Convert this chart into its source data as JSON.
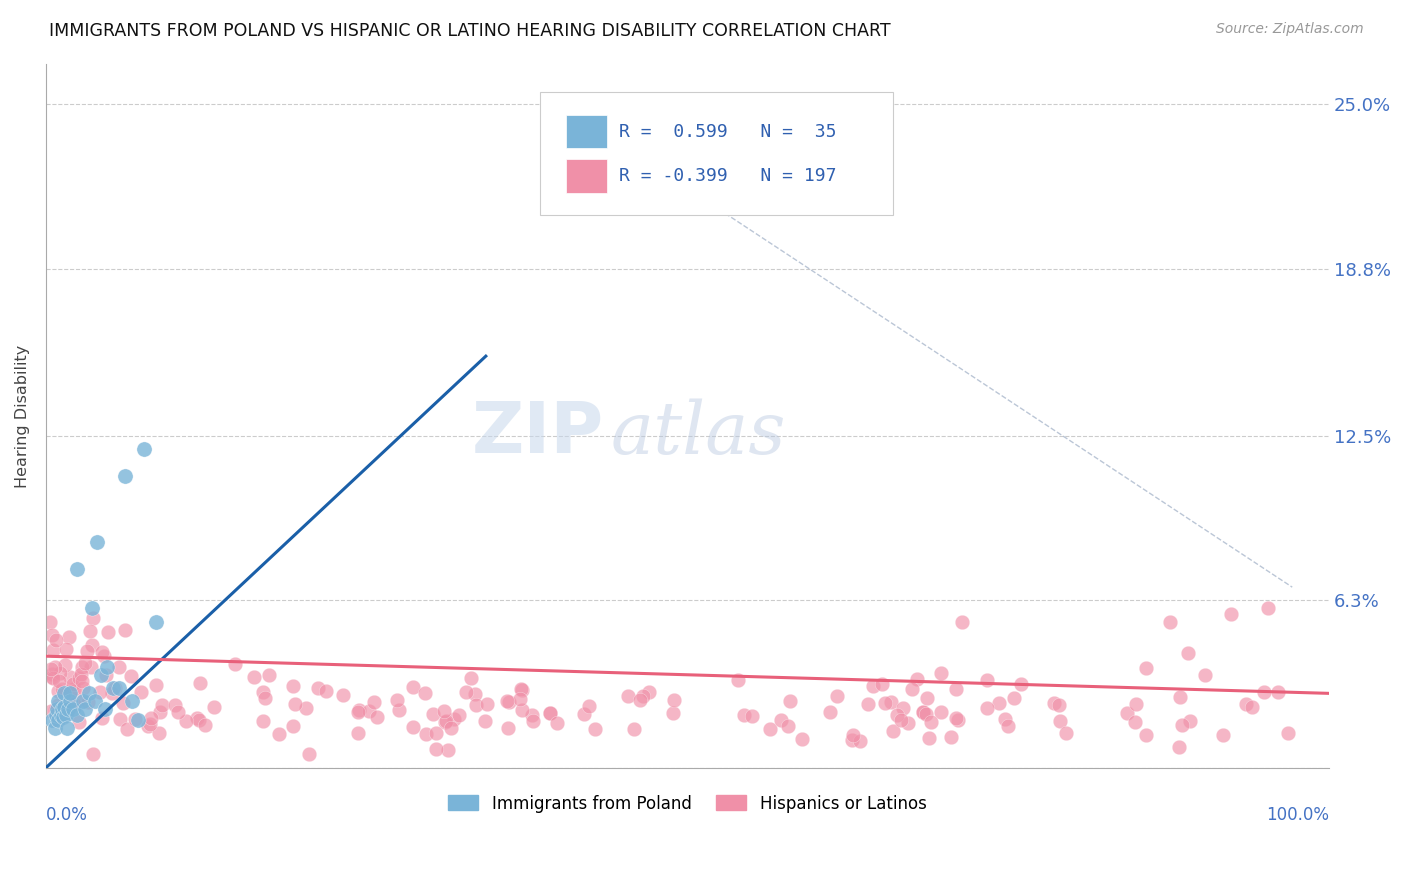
{
  "title": "IMMIGRANTS FROM POLAND VS HISPANIC OR LATINO HEARING DISABILITY CORRELATION CHART",
  "source": "Source: ZipAtlas.com",
  "ylabel": "Hearing Disability",
  "ytick_vals": [
    0.0,
    0.063,
    0.125,
    0.188,
    0.25
  ],
  "ytick_labels": [
    "",
    "6.3%",
    "12.5%",
    "18.8%",
    "25.0%"
  ],
  "ylim": [
    0.0,
    0.265
  ],
  "xlim": [
    0.0,
    1.05
  ],
  "blue_R": 0.599,
  "blue_N": 35,
  "pink_R": -0.399,
  "pink_N": 197,
  "blue_color": "#7ab4d8",
  "pink_color": "#f090a8",
  "blue_line_color": "#1a5fa8",
  "pink_line_color": "#e8607a",
  "watermark_zip": "ZIP",
  "watermark_atlas": "atlas",
  "legend_label_blue": "Immigrants from Poland",
  "legend_label_pink": "Hispanics or Latinos",
  "blue_line_x": [
    0.0,
    0.36
  ],
  "blue_line_y": [
    0.0,
    0.155
  ],
  "pink_line_x": [
    0.0,
    1.05
  ],
  "pink_line_y": [
    0.042,
    0.028
  ],
  "diag_line_x": [
    0.42,
    1.02
  ],
  "diag_line_y": [
    0.25,
    0.068
  ]
}
